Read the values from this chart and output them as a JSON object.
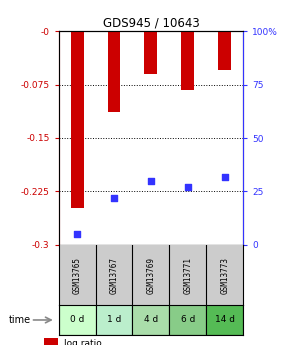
{
  "title": "GDS945 / 10643",
  "samples": [
    "GSM13765",
    "GSM13767",
    "GSM13769",
    "GSM13771",
    "GSM13773"
  ],
  "time_labels": [
    "0 d",
    "1 d",
    "4 d",
    "6 d",
    "14 d"
  ],
  "log_ratios": [
    -0.248,
    -0.113,
    -0.06,
    -0.082,
    -0.055
  ],
  "percentile_ranks": [
    5,
    22,
    30,
    27,
    32
  ],
  "ylim_left": [
    -0.3,
    0.0
  ],
  "ylim_right": [
    0,
    100
  ],
  "yticks_left": [
    0.0,
    -0.075,
    -0.15,
    -0.225,
    -0.3
  ],
  "yticks_right": [
    0,
    25,
    50,
    75,
    100
  ],
  "bar_color": "#cc0000",
  "dot_color": "#3333ff",
  "left_axis_color": "#cc0000",
  "right_axis_color": "#3333ff",
  "gsm_bg_color": "#cccccc",
  "time_bg_colors": [
    "#ccffcc",
    "#bbeecc",
    "#aaddaa",
    "#88cc88",
    "#55bb55"
  ],
  "bar_width": 0.35
}
